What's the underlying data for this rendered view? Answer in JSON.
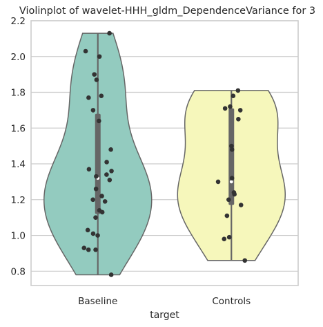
{
  "chart_data": {
    "type": "violin",
    "title": "Violinplot of wavelet-HHH_gldm_DependenceVariance for 3",
    "xlabel": "target",
    "ylabel": "",
    "ylim": [
      0.72,
      2.2
    ],
    "yticks": [
      "0.8",
      "1.0",
      "1.2",
      "1.4",
      "1.6",
      "1.8",
      "2.0",
      "2.2"
    ],
    "grid": "horizontal",
    "categories": [
      "Baseline",
      "Controls"
    ],
    "series": [
      {
        "category": "Baseline",
        "color": "#93cbbf",
        "min": 0.78,
        "max": 2.13,
        "q1": 1.12,
        "median": 1.32,
        "q3": 1.68,
        "points": [
          2.13,
          2.03,
          2.0,
          1.9,
          1.87,
          1.78,
          1.77,
          1.7,
          1.64,
          1.48,
          1.41,
          1.37,
          1.36,
          1.34,
          1.33,
          1.31,
          1.26,
          1.22,
          1.2,
          1.19,
          1.14,
          1.13,
          1.1,
          1.03,
          1.01,
          1.0,
          0.93,
          0.92,
          0.92,
          0.78
        ]
      },
      {
        "category": "Controls",
        "color": "#f6f7bb",
        "min": 0.86,
        "max": 1.81,
        "q1": 1.17,
        "median": 1.3,
        "q3": 1.71,
        "points": [
          1.81,
          1.78,
          1.72,
          1.71,
          1.7,
          1.65,
          1.5,
          1.48,
          1.32,
          1.3,
          1.24,
          1.23,
          1.2,
          1.17,
          1.11,
          0.99,
          0.98,
          0.86
        ]
      }
    ]
  }
}
